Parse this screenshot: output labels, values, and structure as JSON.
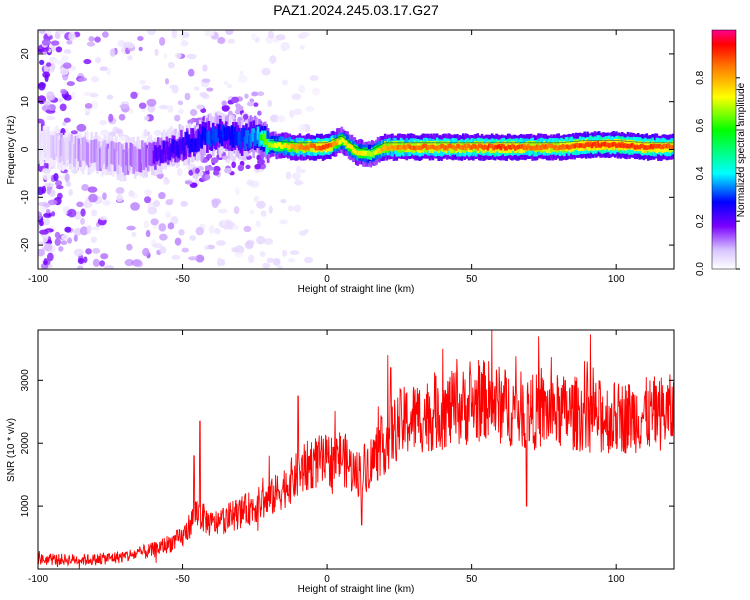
{
  "title": "PAZ1.2024.245.03.17.G27",
  "chart_data": [
    {
      "type": "heatmap",
      "xlabel": "Height of straight line (km)",
      "ylabel": "Frequency (Hz)",
      "xlim": [
        -100,
        120
      ],
      "ylim": [
        -25,
        25
      ],
      "xticks": [
        -100,
        -50,
        0,
        50,
        100
      ],
      "yticks": [
        -20,
        -10,
        0,
        10,
        20
      ],
      "colorbar": {
        "label": "Normalized spectral amplitude",
        "range": [
          0,
          1
        ],
        "ticks": [
          0.0,
          0.2,
          0.4,
          0.6,
          0.8
        ],
        "colormap": [
          "#ffffff",
          "#e6d6ff",
          "#7a00ff",
          "#0000ff",
          "#00ffff",
          "#00ff00",
          "#ffff00",
          "#ff8000",
          "#ff0000"
        ]
      },
      "ridge": {
        "x": [
          -100,
          -90,
          -80,
          -70,
          -60,
          -50,
          -45,
          -40,
          -35,
          -30,
          -25,
          -20,
          -10,
          0,
          5,
          10,
          15,
          20,
          30,
          40,
          50,
          60,
          70,
          80,
          90,
          100,
          110,
          120
        ],
        "freq": [
          1,
          0,
          -1,
          -2,
          -1,
          1,
          2,
          3,
          3,
          2,
          3,
          1,
          0.5,
          0.5,
          2,
          -0.5,
          -1,
          0.5,
          0.5,
          0.5,
          0.5,
          0.5,
          0.5,
          0.5,
          1,
          1,
          0.5,
          0.5
        ],
        "amplitude": [
          0.15,
          0.25,
          0.3,
          0.3,
          0.35,
          0.4,
          0.45,
          0.5,
          0.45,
          0.5,
          0.55,
          0.7,
          0.85,
          0.95,
          0.75,
          0.8,
          0.7,
          0.85,
          0.9,
          0.9,
          0.9,
          0.95,
          0.9,
          0.9,
          0.95,
          0.95,
          0.95,
          0.9
        ]
      }
    },
    {
      "type": "line",
      "xlabel": "Height of straight line (km)",
      "ylabel": "SNR (10 * v/v)",
      "xlim": [
        -100,
        120
      ],
      "ylim": [
        0,
        3800
      ],
      "xticks": [
        -100,
        -50,
        0,
        50,
        100
      ],
      "yticks": [
        1000,
        2000,
        3000
      ],
      "color": "#ff0000",
      "trend": {
        "x": [
          -100,
          -80,
          -70,
          -60,
          -50,
          -45,
          -40,
          -30,
          -20,
          -15,
          -10,
          -5,
          0,
          5,
          10,
          15,
          20,
          25,
          30,
          40,
          50,
          55,
          60,
          70,
          80,
          90,
          100,
          110,
          120
        ],
        "y": [
          150,
          150,
          200,
          300,
          500,
          900,
          700,
          900,
          1100,
          1300,
          1500,
          1700,
          1700,
          1800,
          1500,
          1700,
          2000,
          2300,
          2400,
          2500,
          2600,
          2700,
          2600,
          2500,
          2500,
          2450,
          2400,
          2450,
          2500
        ]
      },
      "peaks": {
        "x": [
          -46,
          -44,
          -20,
          -10,
          12,
          21,
          57,
          69,
          22,
          40,
          90
        ],
        "y": [
          1800,
          2350,
          1800,
          2750,
          700,
          3400,
          3800,
          1000,
          3200,
          3500,
          3300
        ]
      }
    }
  ]
}
